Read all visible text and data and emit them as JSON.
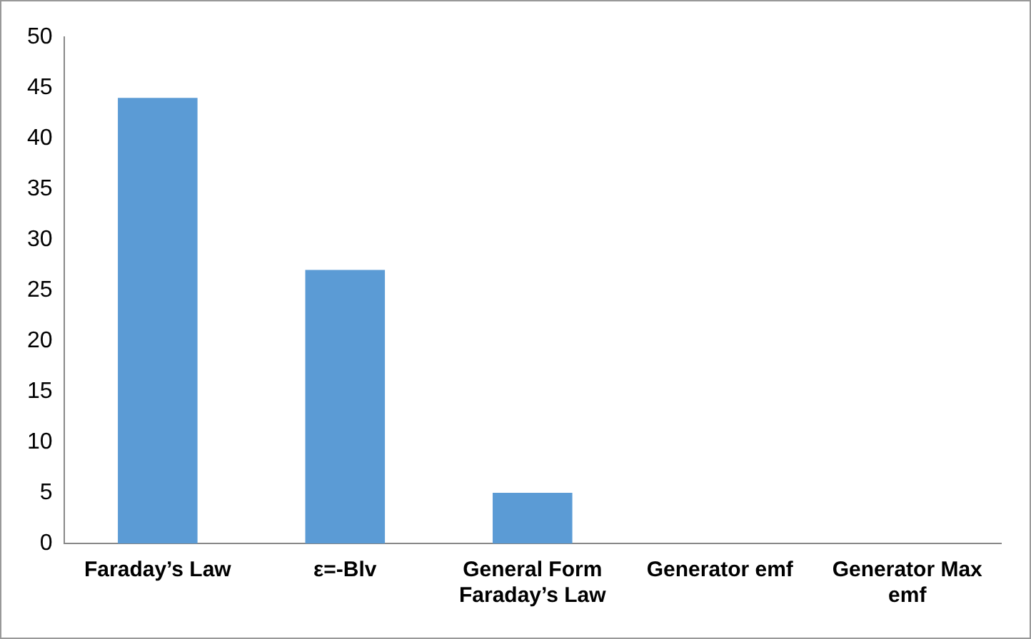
{
  "chart_data": {
    "type": "bar",
    "categories": [
      "Faraday’s Law",
      "ε=-Blv",
      "General Form Faraday’s Law",
      "Generator emf",
      "Generator Max emf"
    ],
    "values": [
      44,
      27,
      5,
      0,
      0
    ],
    "color": "#5b9bd5",
    "ylim": [
      0,
      50
    ],
    "yticks": [
      0,
      5,
      10,
      15,
      20,
      25,
      30,
      35,
      40,
      45,
      50
    ],
    "grid": false,
    "legend": false
  }
}
